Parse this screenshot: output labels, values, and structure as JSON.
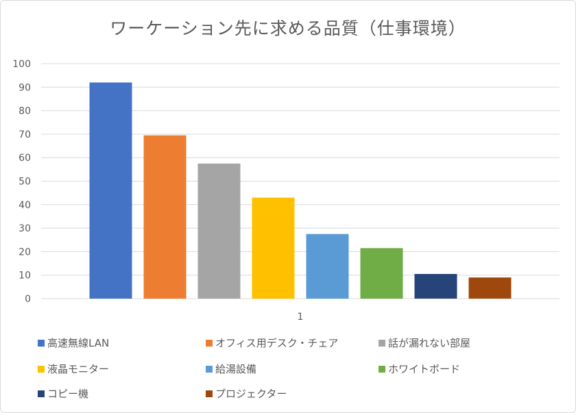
{
  "chart_data": {
    "type": "bar",
    "title": "ワーケーション先に求める品質（仕事環境）",
    "categories": [
      "1"
    ],
    "ylim": [
      0,
      100
    ],
    "yticks": [
      0,
      10,
      20,
      30,
      40,
      50,
      60,
      70,
      80,
      90,
      100
    ],
    "grid": true,
    "legend_position": "bottom",
    "series": [
      {
        "name": "高速無線LAN",
        "values": [
          92
        ],
        "color": "#4472c4"
      },
      {
        "name": "オフィス用デスク・チェア",
        "values": [
          69.5
        ],
        "color": "#ed7d31"
      },
      {
        "name": "話が漏れない部屋",
        "values": [
          57.5
        ],
        "color": "#a5a5a5"
      },
      {
        "name": "液晶モニター",
        "values": [
          43
        ],
        "color": "#ffc000"
      },
      {
        "name": "給湯設備",
        "values": [
          27.5
        ],
        "color": "#5b9bd5"
      },
      {
        "name": "ホワイトボード",
        "values": [
          21.5
        ],
        "color": "#70ad47"
      },
      {
        "name": "コピー機",
        "values": [
          10.5
        ],
        "color": "#264478"
      },
      {
        "name": "プロジェクター",
        "values": [
          9
        ],
        "color": "#9e480e"
      }
    ]
  }
}
